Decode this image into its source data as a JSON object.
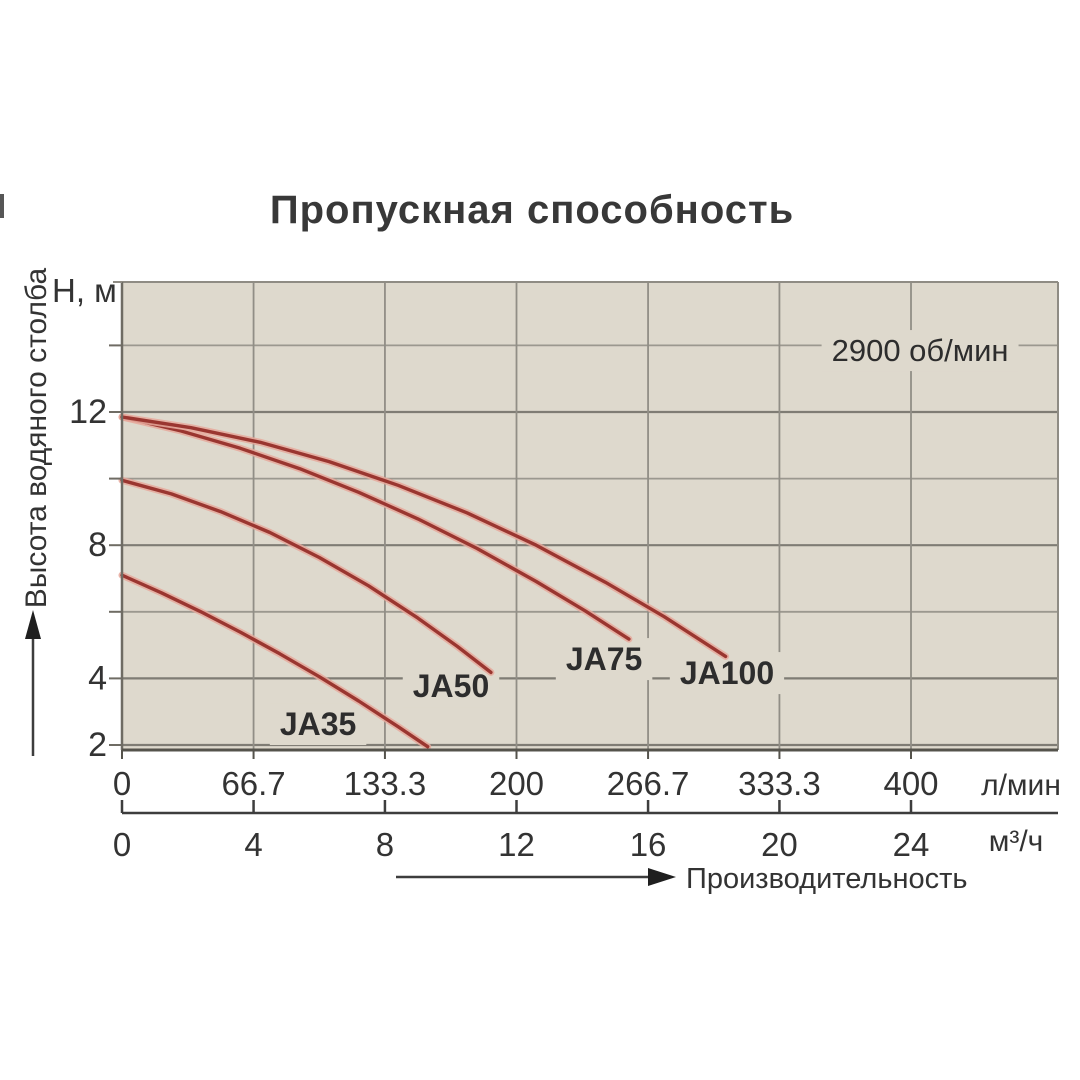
{
  "chart_data": {
    "type": "line",
    "title": "Пропускная способность",
    "annotation_rpm": "2900 об/мин",
    "x_axis_primary": {
      "unit": "л/мин",
      "tick_values": [
        0,
        66.7,
        133.3,
        200,
        266.7,
        333.3,
        400
      ],
      "tick_labels": [
        "0",
        "66.7",
        "133.3",
        "200",
        "266.7",
        "333.3",
        "400"
      ],
      "xlim": [
        0,
        474
      ]
    },
    "x_axis_secondary": {
      "unit": "м³/ч",
      "tick_values": [
        0,
        4,
        8,
        12,
        16,
        20,
        24
      ],
      "tick_labels": [
        "0",
        "4",
        "8",
        "12",
        "16",
        "20",
        "24"
      ]
    },
    "y_axis": {
      "unit_label": "H, м",
      "axis_title": "Высота водяного столба",
      "gridline_values": [
        2,
        4,
        6,
        8,
        10,
        12,
        14
      ],
      "labeled_values": [
        12,
        8,
        4,
        2
      ],
      "ylim": [
        1.8,
        15.9
      ]
    },
    "arrow_label": "Производительность",
    "grid": true,
    "legend": "inline-curve-labels",
    "curve_color": "#9a3630",
    "series": [
      {
        "name": "JA35",
        "points": [
          [
            0,
            7.1
          ],
          [
            20,
            6.57
          ],
          [
            40,
            6.0
          ],
          [
            60,
            5.39
          ],
          [
            80,
            4.74
          ],
          [
            100,
            4.05
          ],
          [
            120,
            3.32
          ],
          [
            140,
            2.55
          ],
          [
            155,
            1.95
          ]
        ]
      },
      {
        "name": "JA50",
        "points": [
          [
            0,
            9.95
          ],
          [
            25,
            9.54
          ],
          [
            50,
            9.01
          ],
          [
            75,
            8.38
          ],
          [
            100,
            7.63
          ],
          [
            125,
            6.78
          ],
          [
            150,
            5.81
          ],
          [
            170,
            4.96
          ],
          [
            187,
            4.18
          ]
        ]
      },
      {
        "name": "JA75",
        "points": [
          [
            0,
            11.85
          ],
          [
            30,
            11.43
          ],
          [
            60,
            10.91
          ],
          [
            90,
            10.3
          ],
          [
            120,
            9.59
          ],
          [
            150,
            8.79
          ],
          [
            180,
            7.9
          ],
          [
            210,
            6.91
          ],
          [
            235,
            6.02
          ],
          [
            257,
            5.18
          ]
        ]
      },
      {
        "name": "JA100",
        "points": [
          [
            0,
            11.85
          ],
          [
            35,
            11.53
          ],
          [
            70,
            11.09
          ],
          [
            105,
            10.51
          ],
          [
            140,
            9.8
          ],
          [
            175,
            8.97
          ],
          [
            210,
            8.0
          ],
          [
            245,
            6.89
          ],
          [
            275,
            5.85
          ],
          [
            306,
            4.66
          ]
        ]
      }
    ],
    "series_labels": [
      {
        "text": "JA35",
        "q": 99.4,
        "h": 2.63
      },
      {
        "text": "JA50",
        "q": 166.8,
        "h": 3.77
      },
      {
        "text": "JA75",
        "q": 244.4,
        "h": 4.58
      },
      {
        "text": "JA100",
        "q": 306.7,
        "h": 4.16
      }
    ],
    "rpm_pos": {
      "q": 404.6,
      "h": 13.86
    }
  },
  "colors": {
    "plot_bg": "#ded9cd",
    "grid_minor": "#9b988f",
    "grid_major": "#7f7c74",
    "grid_vertical": "#918e86",
    "border_dark": "#55534c",
    "border_left": "#6f6c64",
    "border_light": "#8f8c84",
    "axis2_line": "#3d3d3d",
    "curve_core": "#9a3630",
    "curve_halo": "#e6a89b",
    "text": "#333333"
  }
}
